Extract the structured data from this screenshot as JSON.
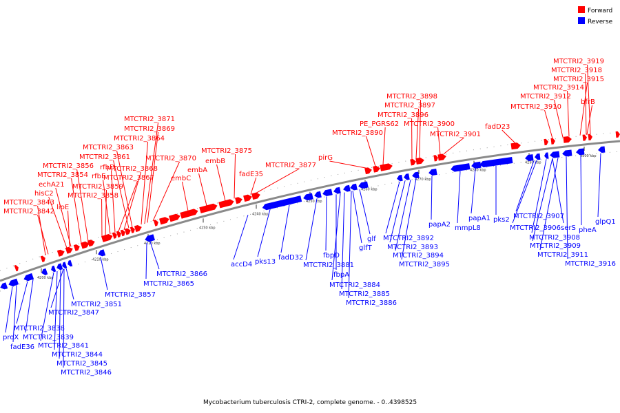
{
  "caption": "Mycobacterium tuberculosis CTRI-2, complete genome. - 0..4398525",
  "legend": [
    {
      "label": "Forward",
      "color": "#ff0000"
    },
    {
      "label": "Reverse",
      "color": "#0000ff"
    }
  ],
  "colors": {
    "forward": "#ff0000",
    "reverse": "#0000ff",
    "backbone": "#888888"
  },
  "scale_labels": [
    "4200 kbp",
    "4210 kbp",
    "4220 kbp",
    "4230 kbp",
    "4240 kbp",
    "4250 kbp",
    "4260 kbp",
    "4270 kbp",
    "4280 kbp",
    "4290 kbp",
    "4300 kbp"
  ],
  "forward_labels": [
    "MTCTRI2_3919",
    "MTCTRI2_3918",
    "MTCTRI2_3915",
    "MTCTRI2_3914",
    "MTCTRI2_3912",
    "MTCTRI2_3910",
    "bfrB",
    "MTCTRI2_3898",
    "MTCTRI2_3897",
    "MTCTRI2_3896",
    "PE_PGRS62",
    "MTCTRI2_3900",
    "MTCTRI2_3890",
    "MTCTRI2_3901",
    "fadD23",
    "pirG",
    "MTCTRI2_3871",
    "MTCTRI2_3869",
    "MTCTRI2_3864",
    "MTCTRI2_3863",
    "MTCTRI2_3861",
    "MTCTRI2_3870",
    "MTCTRI2_3868",
    "MTCTRI2_3867",
    "MTCTRI2_3875",
    "embB",
    "embA",
    "embC",
    "fadE35",
    "MTCTRI2_3877",
    "MTCTRI2_3856",
    "MTCTRI2_3854",
    "echA21",
    "hisC2",
    "MTCTRI2_3843",
    "MTCTRI2_3842",
    "lipE",
    "rfbD",
    "rfbE",
    "MTCTRI2_3859",
    "MTCTRI2_3858"
  ],
  "reverse_labels": [
    "MTCTRI2_3907",
    "MTCTRI2_3906",
    "MTCTRI2_3908",
    "MTCTRI2_3909",
    "MTCTRI2_3911",
    "MTCTRI2_3916",
    "pheA",
    "glpQ1",
    "serS",
    "papA1",
    "pks2",
    "mmpL8",
    "papA2",
    "MTCTRI2_3892",
    "MTCTRI2_3893",
    "MTCTRI2_3894",
    "MTCTRI2_3895",
    "glf",
    "glfT",
    "fbpD",
    "fbpA",
    "MTCTRI2_3881",
    "MTCTRI2_3884",
    "MTCTRI2_3885",
    "MTCTRI2_3886",
    "fadD32",
    "pks13",
    "accD4",
    "MTCTRI2_3866",
    "MTCTRI2_3865",
    "MTCTRI2_3857",
    "MTCTRI2_3851",
    "MTCTRI2_3847",
    "MTCTRI2_3838",
    "MTCTRI2_3839",
    "proX",
    "fadE36",
    "MTCTRI2_3841",
    "MTCTRI2_3844",
    "MTCTRI2_3845",
    "MTCTRI2_3846"
  ]
}
